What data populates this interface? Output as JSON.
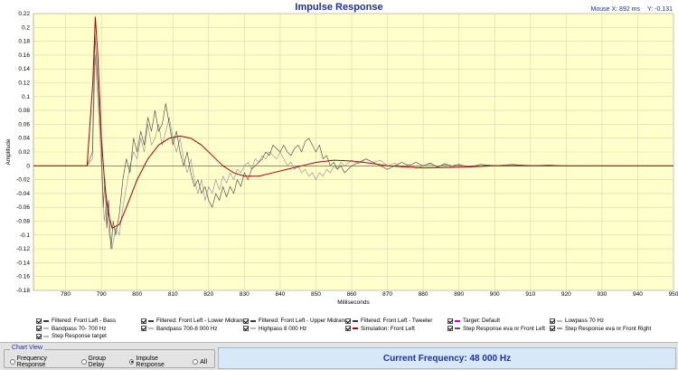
{
  "window": {
    "title": "Impulse Response"
  },
  "mouse": {
    "x_label": "Mouse X: 892 ms",
    "y_label": "Y: -0.131"
  },
  "chart_data": {
    "type": "line",
    "title": "Impulse Response",
    "xlabel": "Milliseconds",
    "ylabel": "Amplitude",
    "xlim": [
      780,
      950
    ],
    "x_view": [
      771,
      950
    ],
    "ylim": [
      -0.18,
      0.22
    ],
    "x_ticks": [
      "780",
      "790",
      "800",
      "810",
      "820",
      "830",
      "840",
      "850",
      "860",
      "870",
      "880",
      "890",
      "900",
      "910",
      "920",
      "930",
      "940",
      "950"
    ],
    "y_ticks": [
      "0.22",
      "0.2",
      "0.18",
      "0.16",
      "0.14",
      "0.12",
      "0.1",
      "0.08",
      "0.06",
      "0.04",
      "0.02",
      "0",
      "-0.02",
      "-0.04",
      "-0.06",
      "-0.08",
      "-0.1",
      "-0.12",
      "-0.14",
      "-0.16",
      "-0.18"
    ],
    "grid": true,
    "series": [
      {
        "name": "Simulation: Front Left",
        "color": "#b00000",
        "points": [
          [
            771,
            0
          ],
          [
            786,
            0
          ],
          [
            787.6,
            0.12
          ],
          [
            788.3,
            0.215
          ],
          [
            789,
            0.16
          ],
          [
            790,
            0.04
          ],
          [
            791,
            -0.03
          ],
          [
            792,
            -0.07
          ],
          [
            793,
            -0.09
          ],
          [
            795,
            -0.085
          ],
          [
            797,
            -0.06
          ],
          [
            800,
            -0.02
          ],
          [
            803,
            0.01
          ],
          [
            806,
            0.03
          ],
          [
            809,
            0.04
          ],
          [
            812,
            0.043
          ],
          [
            815,
            0.04
          ],
          [
            818,
            0.03
          ],
          [
            821,
            0.015
          ],
          [
            824,
            0.0
          ],
          [
            827,
            -0.01
          ],
          [
            830,
            -0.015
          ],
          [
            834,
            -0.015
          ],
          [
            838,
            -0.01
          ],
          [
            842,
            -0.005
          ],
          [
            846,
            0.0
          ],
          [
            850,
            0.005
          ],
          [
            855,
            0.008
          ],
          [
            860,
            0.007
          ],
          [
            865,
            0.004
          ],
          [
            870,
            0.0
          ],
          [
            880,
            -0.003
          ],
          [
            890,
            -0.002
          ],
          [
            900,
            0.0
          ],
          [
            950,
            0.0
          ]
        ]
      },
      {
        "name": "Step Response eva nr Front Left",
        "color": "#555555",
        "points": [
          [
            771,
            0
          ],
          [
            786,
            0
          ],
          [
            787.5,
            0.02
          ],
          [
            788.2,
            0.19
          ],
          [
            789,
            0.12
          ],
          [
            790,
            0.03
          ],
          [
            790.5,
            -0.06
          ],
          [
            791,
            -0.02
          ],
          [
            791.5,
            -0.09
          ],
          [
            792,
            -0.05
          ],
          [
            792.7,
            -0.12
          ],
          [
            793.3,
            -0.08
          ],
          [
            794,
            -0.1
          ],
          [
            795,
            -0.07
          ],
          [
            796,
            -0.02
          ],
          [
            797,
            0.01
          ],
          [
            798,
            -0.01
          ],
          [
            799,
            0.04
          ],
          [
            800,
            0.02
          ],
          [
            801,
            0.05
          ],
          [
            802,
            0.03
          ],
          [
            803,
            0.07
          ],
          [
            804,
            0.05
          ],
          [
            805,
            0.08
          ],
          [
            806,
            0.05
          ],
          [
            807,
            0.06
          ],
          [
            808,
            0.09
          ],
          [
            809,
            0.06
          ],
          [
            810,
            0.03
          ],
          [
            811,
            0.05
          ],
          [
            812,
            0.02
          ],
          [
            813,
            0.0
          ],
          [
            814,
            0.02
          ],
          [
            815,
            -0.01
          ],
          [
            816,
            -0.03
          ],
          [
            817,
            -0.02
          ],
          [
            818,
            -0.04
          ],
          [
            819,
            -0.03
          ],
          [
            820,
            -0.05
          ],
          [
            821,
            -0.06
          ],
          [
            822,
            -0.04
          ],
          [
            823,
            -0.05
          ],
          [
            824,
            -0.03
          ],
          [
            825,
            -0.045
          ],
          [
            826,
            -0.03
          ],
          [
            827,
            -0.04
          ],
          [
            828,
            -0.02
          ],
          [
            829,
            -0.03
          ],
          [
            830,
            -0.01
          ],
          [
            831,
            -0.02
          ],
          [
            832,
            -0.005
          ],
          [
            833,
            0.0
          ],
          [
            834,
            0.005
          ],
          [
            835,
            0.01
          ],
          [
            836,
            0.02
          ],
          [
            837,
            0.015
          ],
          [
            838,
            0.03
          ],
          [
            839,
            0.025
          ],
          [
            840,
            0.02
          ],
          [
            841,
            0.03
          ],
          [
            842,
            0.02
          ],
          [
            843,
            0.015
          ],
          [
            844,
            0.025
          ],
          [
            845,
            0.03
          ],
          [
            846,
            0.02
          ],
          [
            847,
            0.035
          ],
          [
            848,
            0.04
          ],
          [
            849,
            0.03
          ],
          [
            850,
            0.02
          ],
          [
            851,
            0.03
          ],
          [
            852,
            0.01
          ],
          [
            853,
            0.015
          ],
          [
            854,
            0.0
          ],
          [
            855,
            0.005
          ],
          [
            856,
            -0.005
          ],
          [
            857,
            0.0
          ],
          [
            858,
            -0.01
          ],
          [
            859,
            -0.005
          ],
          [
            860,
            0.0
          ],
          [
            862,
            0.005
          ],
          [
            864,
            0.01
          ],
          [
            866,
            0.005
          ],
          [
            868,
            0.0
          ],
          [
            870,
            -0.005
          ],
          [
            872,
            0.0
          ],
          [
            874,
            0.005
          ],
          [
            876,
            0.0
          ],
          [
            878,
            0.005
          ],
          [
            880,
            0.0
          ],
          [
            882,
            0.004
          ],
          [
            884,
            -0.002
          ],
          [
            886,
            0.003
          ],
          [
            888,
            0.0
          ],
          [
            890,
            0.002
          ],
          [
            893,
            -0.002
          ],
          [
            896,
            0.002
          ],
          [
            900,
            0.0
          ],
          [
            905,
            0.002
          ],
          [
            910,
            0.0
          ],
          [
            915,
            0.001
          ],
          [
            920,
            0.0
          ],
          [
            950,
            0.0
          ]
        ]
      },
      {
        "name": "Step Response eva nr Front Right",
        "color": "#999999",
        "points": [
          [
            771,
            0
          ],
          [
            786,
            0
          ],
          [
            787.5,
            0.01
          ],
          [
            788.3,
            0.16
          ],
          [
            789,
            0.1
          ],
          [
            790,
            0.0
          ],
          [
            790.8,
            -0.08
          ],
          [
            791.5,
            -0.05
          ],
          [
            792.2,
            -0.1
          ],
          [
            793,
            -0.12
          ],
          [
            794,
            -0.09
          ],
          [
            795,
            -0.1
          ],
          [
            796,
            -0.06
          ],
          [
            797,
            -0.03
          ],
          [
            798,
            0.0
          ],
          [
            799,
            0.02
          ],
          [
            800,
            0.01
          ],
          [
            801,
            0.04
          ],
          [
            802,
            0.02
          ],
          [
            803,
            0.06
          ],
          [
            804,
            0.03
          ],
          [
            805,
            0.04
          ],
          [
            806,
            0.06
          ],
          [
            807,
            0.03
          ],
          [
            808,
            0.05
          ],
          [
            809,
            0.07
          ],
          [
            810,
            0.04
          ],
          [
            811,
            0.02
          ],
          [
            812,
            0.04
          ],
          [
            813,
            0.01
          ],
          [
            814,
            -0.01
          ],
          [
            815,
            0.01
          ],
          [
            816,
            -0.02
          ],
          [
            817,
            -0.04
          ],
          [
            818,
            -0.02
          ],
          [
            819,
            -0.05
          ],
          [
            820,
            -0.03
          ],
          [
            821,
            -0.04
          ],
          [
            822,
            -0.02
          ],
          [
            823,
            -0.035
          ],
          [
            824,
            -0.015
          ],
          [
            825,
            -0.025
          ],
          [
            826,
            -0.01
          ],
          [
            827,
            -0.02
          ],
          [
            828,
            -0.005
          ],
          [
            829,
            -0.01
          ],
          [
            830,
            0.0
          ],
          [
            831,
            0.005
          ],
          [
            832,
            -0.005
          ],
          [
            833,
            0.01
          ],
          [
            834,
            0.005
          ],
          [
            835,
            0.015
          ],
          [
            836,
            0.01
          ],
          [
            837,
            0.02
          ],
          [
            838,
            0.015
          ],
          [
            839,
            0.01
          ],
          [
            840,
            0.02
          ],
          [
            841,
            0.01
          ],
          [
            842,
            0.0
          ],
          [
            843,
            0.005
          ],
          [
            844,
            -0.005
          ],
          [
            845,
            0.0
          ],
          [
            846,
            -0.01
          ],
          [
            847,
            -0.005
          ],
          [
            848,
            -0.015
          ],
          [
            849,
            -0.01
          ],
          [
            850,
            -0.02
          ],
          [
            851,
            -0.01
          ],
          [
            852,
            -0.015
          ],
          [
            853,
            -0.005
          ],
          [
            854,
            -0.01
          ],
          [
            855,
            0.0
          ],
          [
            856,
            -0.005
          ],
          [
            857,
            0.005
          ],
          [
            858,
            0.0
          ],
          [
            860,
            0.008
          ],
          [
            862,
            0.003
          ],
          [
            864,
            0.01
          ],
          [
            866,
            0.005
          ],
          [
            868,
            0.008
          ],
          [
            870,
            0.0
          ],
          [
            872,
            0.004
          ],
          [
            874,
            -0.002
          ],
          [
            876,
            0.002
          ],
          [
            878,
            -0.004
          ],
          [
            880,
            0.0
          ],
          [
            882,
            0.003
          ],
          [
            884,
            -0.002
          ],
          [
            886,
            0.002
          ],
          [
            888,
            -0.002
          ],
          [
            890,
            0.001
          ],
          [
            894,
            -0.001
          ],
          [
            898,
            0.001
          ],
          [
            902,
            0.0
          ],
          [
            908,
            0.001
          ],
          [
            914,
            0.0
          ],
          [
            920,
            0.0
          ],
          [
            950,
            0.0
          ]
        ]
      },
      {
        "name": "Target: Default",
        "color": "#c000c0",
        "points": [
          [
            771,
            0
          ],
          [
            950,
            0
          ]
        ]
      }
    ]
  },
  "legend": [
    {
      "label": "Filtered: Front Left - Bass",
      "color": "#3a3a3a",
      "col": 0,
      "row": 0
    },
    {
      "label": "Filtered: Front Left - Lower Midrange",
      "color": "#3a3a3a",
      "col": 1,
      "row": 0
    },
    {
      "label": "Filtered: Front Left - Upper Midrange",
      "color": "#3a3a3a",
      "col": 2,
      "row": 0
    },
    {
      "label": "Filtered: Front Left - Tweeter",
      "color": "#3a3a3a",
      "col": 3,
      "row": 0
    },
    {
      "label": "Target: Default",
      "color": "#c000c0",
      "col": 4,
      "row": 0
    },
    {
      "label": "Lowpass  70 Hz",
      "color": "#bbbbbb",
      "col": 5,
      "row": 0
    },
    {
      "label": "Bandpass   70- 700 Hz",
      "color": "#bbbbbb",
      "col": 0,
      "row": 1
    },
    {
      "label": "Bandpass   700-8 000 Hz",
      "color": "#bbbbbb",
      "col": 1,
      "row": 1
    },
    {
      "label": "Highpass  8 000 Hz",
      "color": "#bbbbbb",
      "col": 2,
      "row": 1
    },
    {
      "label": "Simulation: Front Left",
      "color": "#b00000",
      "col": 3,
      "row": 1
    },
    {
      "label": "Step Response eva nr Front Left",
      "color": "#555555",
      "col": 4,
      "row": 1
    },
    {
      "label": "Step Response eva nr Front Right",
      "color": "#999999",
      "col": 5,
      "row": 1
    },
    {
      "label": "Step Response target",
      "color": "#bbbbbb",
      "col": 0,
      "row": 2
    }
  ],
  "chart_view": {
    "title": "Chart View",
    "options": [
      {
        "label": "Frequency Response",
        "selected": false
      },
      {
        "label": "Group Delay",
        "selected": false
      },
      {
        "label": "Impulse Response",
        "selected": true
      },
      {
        "label": "All",
        "selected": false
      }
    ]
  },
  "status": {
    "frequency": "Current Frequency: 48 000 Hz"
  }
}
